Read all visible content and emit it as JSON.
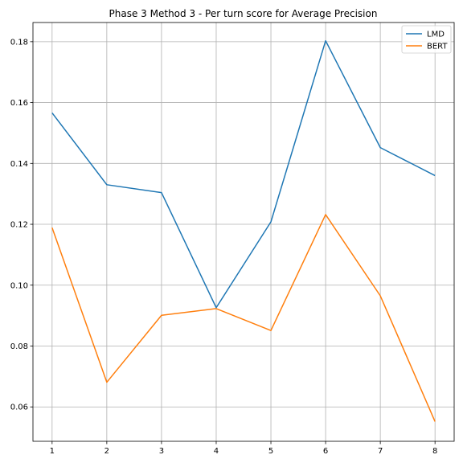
{
  "chart_data": {
    "type": "line",
    "title": "Phase 3 Method 3 - Per turn score for Average Precision",
    "xlabel": "",
    "ylabel": "",
    "x": [
      1,
      2,
      3,
      4,
      5,
      6,
      7,
      8
    ],
    "xlim": [
      0.65,
      8.35
    ],
    "ylim": [
      0.0487,
      0.1863
    ],
    "yticks": [
      0.06,
      0.08,
      0.1,
      0.12,
      0.14,
      0.16,
      0.18
    ],
    "ytick_labels": [
      "0.06",
      "0.08",
      "0.10",
      "0.12",
      "0.14",
      "0.16",
      "0.18"
    ],
    "xtick_labels": [
      "1",
      "2",
      "3",
      "4",
      "5",
      "6",
      "7",
      "8"
    ],
    "grid": true,
    "legend": "top-right",
    "series": [
      {
        "name": "LMD",
        "color": "#1f77b4",
        "values": [
          0.1566,
          0.133,
          0.1304,
          0.0926,
          0.1208,
          0.1803,
          0.1452,
          0.136
        ]
      },
      {
        "name": "BERT",
        "color": "#ff7f0e",
        "values": [
          0.1189,
          0.0681,
          0.0901,
          0.0923,
          0.0851,
          0.1232,
          0.0965,
          0.0552
        ]
      }
    ]
  }
}
